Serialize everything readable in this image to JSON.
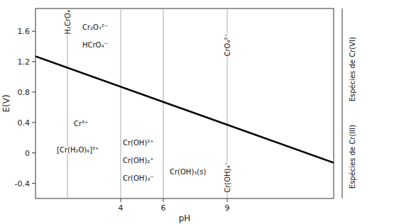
{
  "chart_data": {
    "type": "line",
    "xlabel": "pH",
    "ylabel": "E(V)",
    "x": [
      0,
      14
    ],
    "values": [
      1.27,
      -0.13
    ],
    "color": "#000000",
    "xlim": [
      0,
      14
    ],
    "ylim": [
      -0.6,
      1.9
    ],
    "xticks": [
      4,
      6,
      9
    ],
    "yticks": [
      -0.4,
      0,
      0.4,
      0.8,
      1.2,
      1.6
    ],
    "vlines": [
      1.5,
      4,
      6,
      9
    ],
    "region_labels": [
      "Espécies de Cr(VI)",
      "Espécies de Cr(III)"
    ],
    "annotations": [
      {
        "text": "H₂CrO₄",
        "x": 1.5,
        "y": 1.72
      },
      {
        "text": "Cr₂O₇²⁻",
        "x": 2.2,
        "y": 1.65
      },
      {
        "text": "HCrO₄⁻",
        "x": 2.2,
        "y": 1.42
      },
      {
        "text": "CrO₄²⁻",
        "x": 9.0,
        "y": 1.42
      },
      {
        "text": "Cr³⁺",
        "x": 1.8,
        "y": 0.38
      },
      {
        "text": "[Cr(H₂O)₆]³⁺",
        "x": 1.0,
        "y": 0.04
      },
      {
        "text": "Cr(OH)²⁺",
        "x": 4.1,
        "y": 0.13
      },
      {
        "text": "Cr(OH)₂⁺",
        "x": 4.1,
        "y": -0.1
      },
      {
        "text": "Cr(OH)₃⁻",
        "x": 4.1,
        "y": -0.33
      },
      {
        "text": "Cr(OH)₃(s)",
        "x": 6.3,
        "y": -0.25
      },
      {
        "text": "Cr(OH)₄⁻",
        "x": 9.0,
        "y": -0.32
      }
    ]
  }
}
